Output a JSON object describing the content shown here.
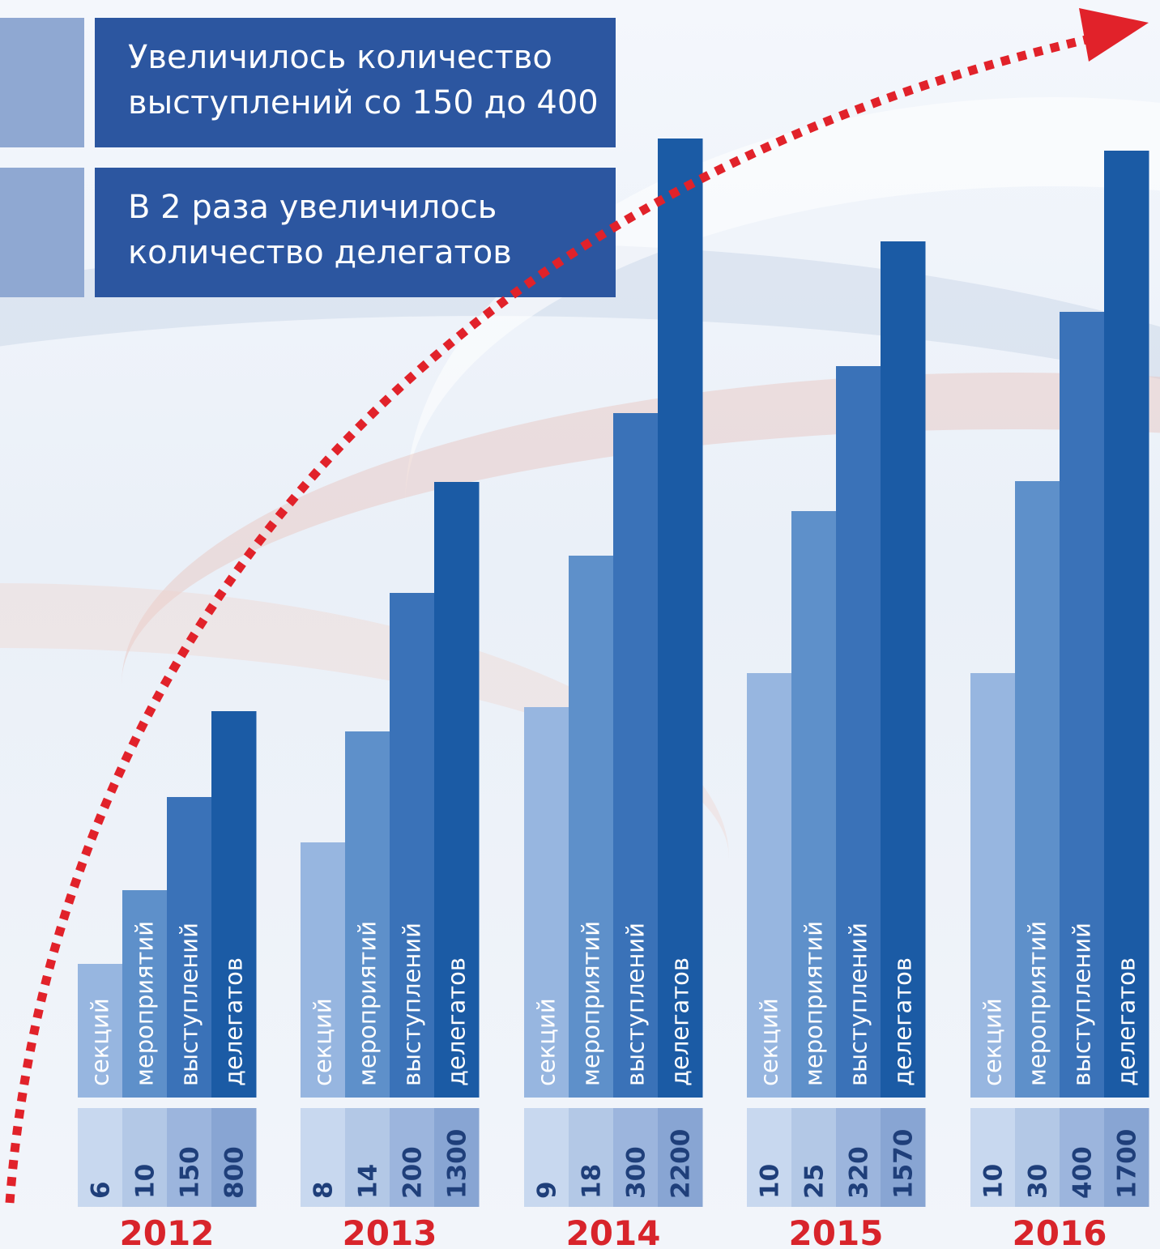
{
  "banners": [
    {
      "line1": "Увеличилось количество",
      "line2": "выступлений со 150 до 400"
    },
    {
      "line1": "В 2 раза увеличилось",
      "line2": "количество делегатов"
    }
  ],
  "colors": {
    "series": [
      "#97b6e0",
      "#5e90ca",
      "#3a72b8",
      "#1b5ba5"
    ],
    "value_cells": [
      "#c8d8ef",
      "#b3c8e6",
      "#9cb5dd",
      "#88a5d3"
    ],
    "value_text": "#1f3f7a",
    "year_text": "#d8242b",
    "arrow": "#e1222a"
  },
  "chart_data": {
    "type": "bar",
    "categories": [
      "2012",
      "2013",
      "2014",
      "2015",
      "2016"
    ],
    "series": [
      {
        "name": "секций",
        "values": [
          6,
          8,
          9,
          10,
          10
        ]
      },
      {
        "name": "мероприятий",
        "values": [
          10,
          14,
          18,
          25,
          30
        ]
      },
      {
        "name": "выступлений",
        "values": [
          150,
          200,
          300,
          320,
          400
        ]
      },
      {
        "name": "делегатов",
        "values": [
          800,
          1300,
          2200,
          1570,
          1700
        ]
      }
    ],
    "value_labels": [
      [
        "6",
        "10",
        "150",
        "800"
      ],
      [
        "8",
        "14",
        "200",
        "1300"
      ],
      [
        "9",
        "18",
        "300",
        "2200"
      ],
      [
        "10",
        "25",
        "320",
        "1570"
      ],
      [
        "10",
        "30",
        "400",
        "1700"
      ]
    ],
    "title": "",
    "xlabel": "",
    "ylabel": "",
    "legend": "in-bar labels",
    "grid": false
  }
}
